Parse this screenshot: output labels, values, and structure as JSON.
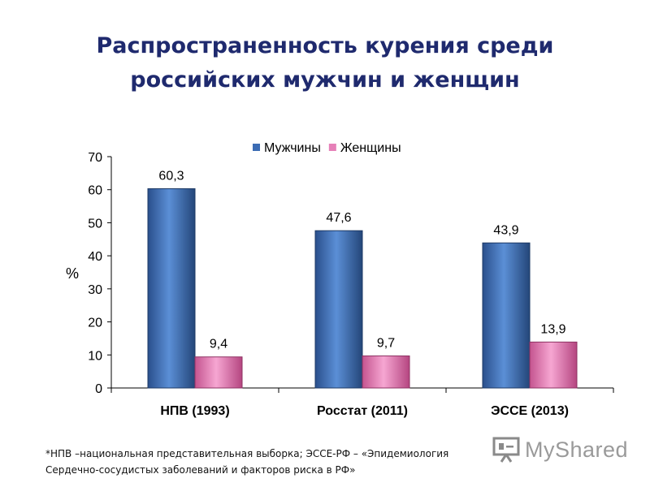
{
  "slide": {
    "title_line1": "Распространенность курения среди",
    "title_line2": "российских мужчин и женщин"
  },
  "chart_data": {
    "type": "bar",
    "title": "",
    "xlabel": "",
    "ylabel": "%",
    "ylim": [
      0,
      70
    ],
    "yticks": [
      "0",
      "10",
      "20",
      "30",
      "40",
      "50",
      "60",
      "70"
    ],
    "categories": [
      "НПВ (1993)",
      "Росстат (2011)",
      "ЭССЕ (2013)"
    ],
    "series": [
      {
        "name": "Мужчины",
        "values": [
          60.3,
          47.6,
          43.9
        ],
        "labels": [
          "60,3",
          "47,6",
          "43,9"
        ],
        "color": "#3c6cb4"
      },
      {
        "name": "Женщины",
        "values": [
          9.4,
          9.7,
          13.9
        ],
        "labels": [
          "9,4",
          "9,7",
          "13,9"
        ],
        "color": "#e680b8"
      }
    ],
    "legend_position": "top",
    "grid": false
  },
  "footnote": {
    "line1": "*НПВ –национальная представительная выборка; ЭССЕ-РФ – «Эпидемиология",
    "line2": "Сердечно-сосудистых заболеваний и факторов риска в РФ»"
  },
  "watermark": {
    "text": "MyShared",
    "icon": "presentation-board-icon"
  }
}
